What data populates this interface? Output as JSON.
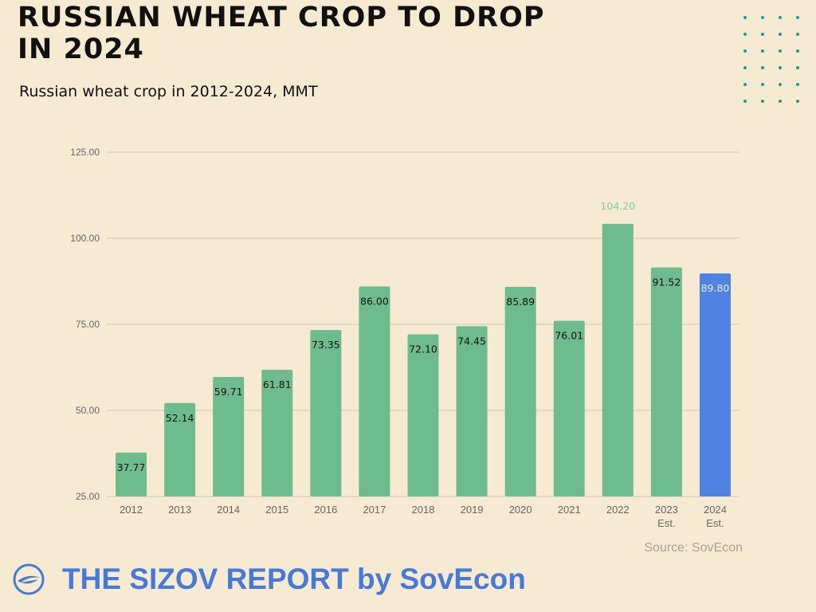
{
  "title_line1": "RUSSIAN WHEAT CROP TO DROP",
  "title_line2": "IN 2024",
  "subtitle": "Russian wheat crop in 2012-2024, MMT",
  "source": "Source: SovEcon",
  "footer": "THE SIZOV REPORT by SovEcon",
  "colors": {
    "background": "#f6ead2",
    "bar": "#6dbb8f",
    "bar_estimate_2024": "#4f82e3",
    "label_highlight": "#7ccf9e",
    "grid": "#cfc8b8",
    "accent_dots": "#1e9a8e",
    "footer": "#4779d6"
  },
  "icons": {
    "logo": "sovecon-logo-icon"
  },
  "chart_data": {
    "type": "bar",
    "title": "",
    "xlabel": "",
    "ylabel": "",
    "categories": [
      "2012",
      "2013",
      "2014",
      "2015",
      "2016",
      "2017",
      "2018",
      "2019",
      "2020",
      "2021",
      "2022",
      "2023\nEst.",
      "2024\nEst."
    ],
    "values": [
      37.77,
      52.14,
      59.71,
      61.81,
      73.35,
      86.0,
      72.1,
      74.45,
      85.89,
      76.01,
      104.2,
      91.52,
      89.8
    ],
    "data_labels": [
      "37.77",
      "52.14",
      "59.71",
      "61.81",
      "73.35",
      "86.00",
      "72.10",
      "74.45",
      "85.89",
      "76.01",
      "104.20",
      "91.52",
      "89.80"
    ],
    "yticks": [
      "25.00",
      "50.00",
      "75.00",
      "100.00",
      "125.00"
    ],
    "ytick_values": [
      25,
      50,
      75,
      100,
      125
    ],
    "ylim": [
      25,
      125
    ],
    "grid": true,
    "legend": "none"
  }
}
